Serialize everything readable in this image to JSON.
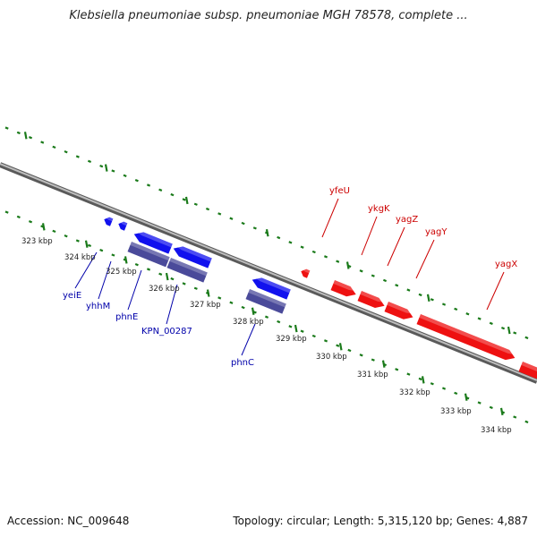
{
  "title": "Klebsiella pneumoniae subsp. pneumoniae MGH 78578, complete ...",
  "footer": {
    "accession": "Accession: NC_009648",
    "summary": "Topology: circular; Length: 5,315,120 bp; Genes: 4,887"
  },
  "colors": {
    "backbone": "#8a8a8a",
    "tick": "#1a7a1a",
    "forward_gene": "#ee1111",
    "reverse_gene": "#1111ee",
    "reverse_cds": "#4a4a9a",
    "forward_label": "#cc0000",
    "reverse_label": "#0000aa"
  },
  "kbp_labels": [
    "323 kbp",
    "324 kbp",
    "325 kbp",
    "326 kbp",
    "327 kbp",
    "328 kbp",
    "329 kbp",
    "330 kbp",
    "331 kbp",
    "332 kbp",
    "333 kbp",
    "334 kbp"
  ],
  "forward_genes": [
    {
      "name": "yfeU"
    },
    {
      "name": "ykgK"
    },
    {
      "name": "yagZ"
    },
    {
      "name": "yagY"
    },
    {
      "name": "yagX"
    }
  ],
  "reverse_genes": [
    {
      "name": "yeiE"
    },
    {
      "name": "yhhM"
    },
    {
      "name": "phnE"
    },
    {
      "name": "KPN_00287"
    },
    {
      "name": "phnC"
    }
  ]
}
